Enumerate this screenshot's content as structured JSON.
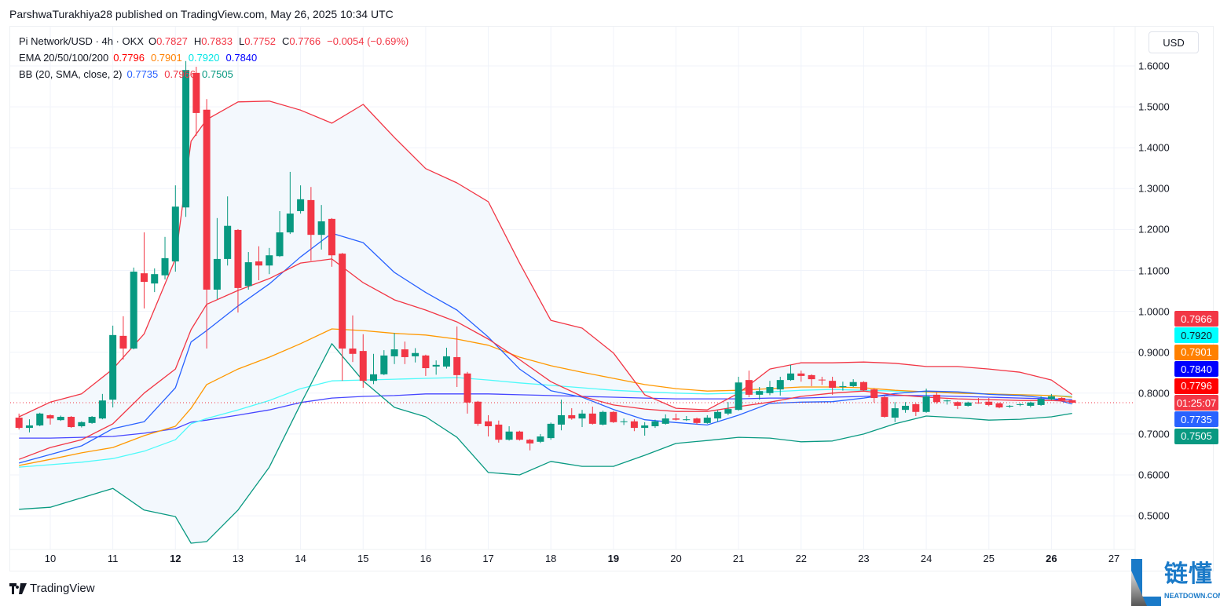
{
  "header": {
    "publish_line": "ParshwaTurakhiya28 published on TradingView.com, May 26, 2025 10:34 UTC"
  },
  "legend": {
    "symbol": "Pi Network/USD · 4h · OKX",
    "o_label": "O",
    "o": "0.7827",
    "h_label": "H",
    "h": "0.7833",
    "l_label": "L",
    "l": "0.7752",
    "c_label": "C",
    "c": "0.7766",
    "change": "−0.0054 (−0.69%)",
    "ema_label": "EMA 20/50/100/200",
    "ema20": "0.7796",
    "ema50": "0.7901",
    "ema100": "0.7920",
    "ema200": "0.7840",
    "bb_label": "BB (20, SMA, close, 2)",
    "bb_basis": "0.7735",
    "bb_upper": "0.7966",
    "bb_lower": "0.7505"
  },
  "currency_button": "USD",
  "price_labels": [
    {
      "text": "0.7966",
      "value": 0.7966,
      "bg": "#f23645",
      "fg": "#ffffff",
      "slot": 0
    },
    {
      "text": "0.7920",
      "value": 0.792,
      "bg": "#00ffff",
      "fg": "#131722",
      "slot": 1
    },
    {
      "text": "0.7901",
      "value": 0.7901,
      "bg": "#ff8000",
      "fg": "#ffffff",
      "slot": 2
    },
    {
      "text": "0.7840",
      "value": 0.784,
      "bg": "#0000ff",
      "fg": "#ffffff",
      "slot": 3
    },
    {
      "text": "0.7796",
      "value": 0.7796,
      "bg": "#ff0000",
      "fg": "#ffffff",
      "slot": 4
    },
    {
      "text": "01:25:07",
      "value": 0.7766,
      "bg": "#f23645",
      "fg": "#ffffff",
      "slot": 5
    },
    {
      "text": "0.7735",
      "value": 0.7735,
      "bg": "#2962ff",
      "fg": "#ffffff",
      "slot": 6
    },
    {
      "text": "0.7505",
      "value": 0.7505,
      "bg": "#089981",
      "fg": "#ffffff",
      "slot": 7
    }
  ],
  "footer": {
    "brand": "TradingView"
  },
  "watermark": {
    "cn": "链懂",
    "en": "NEATDOWN.COM"
  },
  "colors": {
    "up": "#089981",
    "down": "#f23645",
    "ema20": "#f23645",
    "ema50": "#ff9800",
    "ema100": "#4dfafa",
    "ema200": "#4646ff",
    "bb_basis": "#2962ff",
    "bb_upper": "#f23645",
    "bb_lower": "#089981",
    "bb_fill": "#f3f8fd",
    "grid": "#f0f3fa",
    "current_price": "#f23645"
  },
  "chart_data": {
    "type": "candlestick",
    "interval": "4h",
    "xlabel": "",
    "ylabel": "",
    "ylim": [
      0.42,
      1.68
    ],
    "xlim": [
      9.4,
      27.5
    ],
    "y_ticks": [
      "1.6000",
      "1.5000",
      "1.4000",
      "1.3000",
      "1.2000",
      "1.1000",
      "1.0000",
      "0.9000",
      "0.8000",
      "0.7000",
      "0.6000",
      "0.5000"
    ],
    "x_ticks": [
      {
        "label": "10",
        "day": 10
      },
      {
        "label": "11",
        "day": 11
      },
      {
        "label": "12",
        "day": 12,
        "bold": true
      },
      {
        "label": "13",
        "day": 13
      },
      {
        "label": "14",
        "day": 14
      },
      {
        "label": "15",
        "day": 15
      },
      {
        "label": "16",
        "day": 16
      },
      {
        "label": "17",
        "day": 17
      },
      {
        "label": "18",
        "day": 18
      },
      {
        "label": "19",
        "day": 19,
        "bold": true
      },
      {
        "label": "20",
        "day": 20
      },
      {
        "label": "21",
        "day": 21
      },
      {
        "label": "22",
        "day": 22
      },
      {
        "label": "23",
        "day": 23
      },
      {
        "label": "24",
        "day": 24
      },
      {
        "label": "25",
        "day": 25
      },
      {
        "label": "26",
        "day": 26,
        "bold": true
      },
      {
        "label": "27",
        "day": 27
      }
    ],
    "grid": true,
    "current_price": 0.7766,
    "candles_columns": [
      "time",
      "open",
      "high",
      "low",
      "close"
    ],
    "candles": [
      [
        "05-09 12:00",
        0.74,
        0.75,
        0.711,
        0.715
      ],
      [
        "05-09 16:00",
        0.715,
        0.736,
        0.704,
        0.721
      ],
      [
        "05-09 20:00",
        0.721,
        0.752,
        0.719,
        0.75
      ],
      [
        "05-10 00:00",
        0.746,
        0.748,
        0.723,
        0.738
      ],
      [
        "05-10 04:00",
        0.734,
        0.745,
        0.732,
        0.742
      ],
      [
        "05-10 08:00",
        0.742,
        0.744,
        0.715,
        0.717
      ],
      [
        "05-10 12:00",
        0.719,
        0.731,
        0.716,
        0.729
      ],
      [
        "05-10 16:00",
        0.727,
        0.744,
        0.725,
        0.742
      ],
      [
        "05-10 20:00",
        0.738,
        0.798,
        0.736,
        0.782
      ],
      [
        "05-11 00:00",
        0.784,
        0.965,
        0.765,
        0.942
      ],
      [
        "05-11 04:00",
        0.94,
        0.988,
        0.882,
        0.909
      ],
      [
        "05-11 08:00",
        0.909,
        1.107,
        0.907,
        1.097
      ],
      [
        "05-11 12:00",
        1.093,
        1.193,
        1.007,
        1.072
      ],
      [
        "05-11 16:00",
        1.068,
        1.105,
        1.047,
        1.091
      ],
      [
        "05-11 20:00",
        1.088,
        1.182,
        1.078,
        1.13
      ],
      [
        "05-12 00:00",
        1.122,
        1.308,
        1.097,
        1.256
      ],
      [
        "05-12 04:00",
        1.254,
        1.612,
        1.231,
        1.59
      ],
      [
        "05-12 08:00",
        1.583,
        1.598,
        1.429,
        1.485
      ],
      [
        "05-12 12:00",
        1.493,
        1.519,
        0.909,
        1.053
      ],
      [
        "05-12 16:00",
        1.053,
        1.228,
        1.03,
        1.128
      ],
      [
        "05-12 20:00",
        1.128,
        1.281,
        1.112,
        1.209
      ],
      [
        "05-13 00:00",
        1.199,
        1.201,
        0.997,
        1.057
      ],
      [
        "05-13 04:00",
        1.062,
        1.145,
        1.053,
        1.12
      ],
      [
        "05-13 08:00",
        1.122,
        1.159,
        1.076,
        1.112
      ],
      [
        "05-13 12:00",
        1.112,
        1.155,
        1.091,
        1.137
      ],
      [
        "05-13 16:00",
        1.135,
        1.245,
        1.133,
        1.193
      ],
      [
        "05-13 20:00",
        1.193,
        1.341,
        1.189,
        1.239
      ],
      [
        "05-14 00:00",
        1.245,
        1.308,
        1.239,
        1.274
      ],
      [
        "05-14 04:00",
        1.272,
        1.304,
        1.124,
        1.187
      ],
      [
        "05-14 08:00",
        1.187,
        1.26,
        1.151,
        1.22
      ],
      [
        "05-14 12:00",
        1.226,
        1.228,
        1.109,
        1.137
      ],
      [
        "05-14 16:00",
        1.141,
        1.143,
        0.83,
        0.909
      ],
      [
        "05-14 20:00",
        0.909,
        0.99,
        0.876,
        0.896
      ],
      [
        "05-15 00:00",
        0.903,
        0.944,
        0.813,
        0.83
      ],
      [
        "05-15 04:00",
        0.83,
        0.896,
        0.822,
        0.846
      ],
      [
        "05-15 08:00",
        0.846,
        0.905,
        0.844,
        0.892
      ],
      [
        "05-15 12:00",
        0.89,
        0.947,
        0.871,
        0.907
      ],
      [
        "05-15 16:00",
        0.907,
        0.926,
        0.871,
        0.888
      ],
      [
        "05-15 20:00",
        0.89,
        0.91,
        0.875,
        0.898
      ],
      [
        "05-16 00:00",
        0.892,
        0.894,
        0.842,
        0.861
      ],
      [
        "05-16 04:00",
        0.865,
        0.88,
        0.845,
        0.869
      ],
      [
        "05-16 08:00",
        0.865,
        0.911,
        0.86,
        0.89
      ],
      [
        "05-16 12:00",
        0.888,
        0.963,
        0.815,
        0.844
      ],
      [
        "05-16 16:00",
        0.848,
        0.852,
        0.75,
        0.777
      ],
      [
        "05-16 20:00",
        0.779,
        0.781,
        0.72,
        0.725
      ],
      [
        "05-17 00:00",
        0.731,
        0.746,
        0.694,
        0.719
      ],
      [
        "05-17 04:00",
        0.723,
        0.733,
        0.679,
        0.686
      ],
      [
        "05-17 08:00",
        0.686,
        0.719,
        0.684,
        0.706
      ],
      [
        "05-17 12:00",
        0.706,
        0.708,
        0.684,
        0.686
      ],
      [
        "05-17 16:00",
        0.686,
        0.688,
        0.66,
        0.677
      ],
      [
        "05-17 20:00",
        0.681,
        0.7,
        0.678,
        0.694
      ],
      [
        "05-18 00:00",
        0.69,
        0.728,
        0.686,
        0.725
      ],
      [
        "05-18 04:00",
        0.723,
        0.784,
        0.709,
        0.746
      ],
      [
        "05-18 08:00",
        0.746,
        0.763,
        0.735,
        0.738
      ],
      [
        "05-18 12:00",
        0.738,
        0.759,
        0.717,
        0.75
      ],
      [
        "05-18 16:00",
        0.75,
        0.767,
        0.723,
        0.725
      ],
      [
        "05-18 20:00",
        0.723,
        0.757,
        0.721,
        0.754
      ],
      [
        "05-19 00:00",
        0.754,
        0.756,
        0.727,
        0.729
      ],
      [
        "05-19 04:00",
        0.729,
        0.738,
        0.722,
        0.731
      ],
      [
        "05-19 08:00",
        0.731,
        0.736,
        0.707,
        0.715
      ],
      [
        "05-19 12:00",
        0.715,
        0.729,
        0.696,
        0.721
      ],
      [
        "05-19 16:00",
        0.719,
        0.735,
        0.715,
        0.731
      ],
      [
        "05-19 20:00",
        0.725,
        0.748,
        0.723,
        0.738
      ],
      [
        "05-20 00:00",
        0.738,
        0.75,
        0.733,
        0.735
      ],
      [
        "05-20 04:00",
        0.734,
        0.744,
        0.732,
        0.736
      ],
      [
        "05-20 08:00",
        0.738,
        0.74,
        0.723,
        0.727
      ],
      [
        "05-20 12:00",
        0.727,
        0.746,
        0.725,
        0.74
      ],
      [
        "05-20 16:00",
        0.738,
        0.758,
        0.73,
        0.754
      ],
      [
        "05-20 20:00",
        0.75,
        0.778,
        0.746,
        0.761
      ],
      [
        "05-21 00:00",
        0.759,
        0.84,
        0.757,
        0.826
      ],
      [
        "05-21 04:00",
        0.832,
        0.855,
        0.79,
        0.796
      ],
      [
        "05-21 08:00",
        0.796,
        0.815,
        0.784,
        0.805
      ],
      [
        "05-21 12:00",
        0.8,
        0.83,
        0.795,
        0.815
      ],
      [
        "05-21 16:00",
        0.809,
        0.84,
        0.794,
        0.832
      ],
      [
        "05-21 20:00",
        0.832,
        0.869,
        0.83,
        0.848
      ],
      [
        "05-22 00:00",
        0.848,
        0.855,
        0.828,
        0.842
      ],
      [
        "05-22 04:00",
        0.844,
        0.846,
        0.817,
        0.834
      ],
      [
        "05-22 08:00",
        0.833,
        0.84,
        0.82,
        0.832
      ],
      [
        "05-22 12:00",
        0.83,
        0.84,
        0.796,
        0.813
      ],
      [
        "05-22 16:00",
        0.815,
        0.828,
        0.806,
        0.817
      ],
      [
        "05-22 20:00",
        0.817,
        0.834,
        0.815,
        0.827
      ],
      [
        "05-23 00:00",
        0.827,
        0.829,
        0.805,
        0.807
      ],
      [
        "05-23 04:00",
        0.809,
        0.812,
        0.777,
        0.788
      ],
      [
        "05-23 08:00",
        0.79,
        0.795,
        0.74,
        0.742
      ],
      [
        "05-23 12:00",
        0.74,
        0.778,
        0.729,
        0.763
      ],
      [
        "05-23 16:00",
        0.759,
        0.778,
        0.752,
        0.769
      ],
      [
        "05-23 20:00",
        0.773,
        0.775,
        0.744,
        0.754
      ],
      [
        "05-24 00:00",
        0.754,
        0.811,
        0.752,
        0.792
      ],
      [
        "05-24 04:00",
        0.796,
        0.802,
        0.774,
        0.778
      ],
      [
        "05-24 08:00",
        0.78,
        0.784,
        0.772,
        0.782
      ],
      [
        "05-24 12:00",
        0.778,
        0.78,
        0.761,
        0.769
      ],
      [
        "05-24 16:00",
        0.769,
        0.779,
        0.767,
        0.777
      ],
      [
        "05-24 20:00",
        0.777,
        0.788,
        0.774,
        0.775
      ],
      [
        "05-25 00:00",
        0.779,
        0.788,
        0.768,
        0.771
      ],
      [
        "05-25 04:00",
        0.775,
        0.777,
        0.763,
        0.765
      ],
      [
        "05-25 08:00",
        0.767,
        0.771,
        0.764,
        0.769
      ],
      [
        "05-25 12:00",
        0.771,
        0.775,
        0.768,
        0.773
      ],
      [
        "05-25 16:00",
        0.769,
        0.779,
        0.765,
        0.777
      ],
      [
        "05-25 20:00",
        0.771,
        0.792,
        0.769,
        0.786
      ],
      [
        "05-26 00:00",
        0.785,
        0.798,
        0.783,
        0.792
      ],
      [
        "05-26 04:00",
        0.788,
        0.79,
        0.78,
        0.782
      ],
      [
        "05-26 08:00",
        0.7827,
        0.7833,
        0.7752,
        0.7766
      ]
    ],
    "indicator_x_day": [
      9.5,
      10,
      10.5,
      11,
      11.5,
      12,
      12.25,
      12.5,
      13,
      13.5,
      14,
      14.5,
      15,
      15.5,
      16,
      16.5,
      17,
      17.5,
      18,
      18.5,
      19,
      19.5,
      20,
      20.5,
      21,
      21.5,
      22,
      22.5,
      23,
      23.5,
      24,
      24.5,
      25,
      25.5,
      26,
      26.33
    ],
    "series": [
      {
        "name": "BB upper",
        "key": "bb_upper",
        "values": [
          0.742,
          0.778,
          0.798,
          0.859,
          0.945,
          1.128,
          1.416,
          1.469,
          1.512,
          1.514,
          1.492,
          1.46,
          1.506,
          1.425,
          1.349,
          1.314,
          1.268,
          1.118,
          0.978,
          0.959,
          0.898,
          0.796,
          0.763,
          0.759,
          0.8,
          0.859,
          0.874,
          0.874,
          0.876,
          0.873,
          0.865,
          0.865,
          0.859,
          0.851,
          0.832,
          0.7966
        ]
      },
      {
        "name": "BB lower",
        "key": "bb_lower",
        "values": [
          0.516,
          0.521,
          0.544,
          0.567,
          0.514,
          0.498,
          0.433,
          0.437,
          0.514,
          0.619,
          0.773,
          0.921,
          0.83,
          0.765,
          0.742,
          0.692,
          0.606,
          0.6,
          0.633,
          0.621,
          0.621,
          0.648,
          0.677,
          0.684,
          0.692,
          0.69,
          0.681,
          0.683,
          0.7,
          0.725,
          0.744,
          0.74,
          0.734,
          0.736,
          0.742,
          0.7505
        ]
      },
      {
        "name": "BB basis",
        "key": "bb_basis",
        "values": [
          0.629,
          0.65,
          0.671,
          0.713,
          0.73,
          0.813,
          0.925,
          0.953,
          1.013,
          1.067,
          1.133,
          1.191,
          1.168,
          1.095,
          1.046,
          1.003,
          0.937,
          0.859,
          0.806,
          0.79,
          0.76,
          0.735,
          0.728,
          0.722,
          0.746,
          0.775,
          0.778,
          0.779,
          0.788,
          0.799,
          0.805,
          0.803,
          0.797,
          0.794,
          0.787,
          0.7735
        ]
      },
      {
        "name": "EMA 20",
        "key": "ema20",
        "values": [
          0.638,
          0.667,
          0.686,
          0.725,
          0.8,
          0.859,
          0.955,
          1.017,
          1.051,
          1.08,
          1.118,
          1.128,
          1.07,
          1.028,
          1.003,
          0.974,
          0.932,
          0.882,
          0.828,
          0.792,
          0.771,
          0.761,
          0.755,
          0.755,
          0.767,
          0.778,
          0.792,
          0.8,
          0.805,
          0.796,
          0.79,
          0.786,
          0.784,
          0.782,
          0.782,
          0.7796
        ]
      },
      {
        "name": "EMA 50",
        "key": "ema50",
        "values": [
          0.623,
          0.638,
          0.654,
          0.667,
          0.696,
          0.719,
          0.763,
          0.821,
          0.859,
          0.888,
          0.921,
          0.957,
          0.953,
          0.946,
          0.942,
          0.932,
          0.917,
          0.888,
          0.867,
          0.851,
          0.836,
          0.821,
          0.811,
          0.805,
          0.807,
          0.811,
          0.815,
          0.815,
          0.813,
          0.807,
          0.803,
          0.8,
          0.798,
          0.796,
          0.794,
          0.7901
        ]
      },
      {
        "name": "EMA 100",
        "key": "ema100",
        "values": [
          0.619,
          0.625,
          0.631,
          0.64,
          0.658,
          0.686,
          0.725,
          0.738,
          0.759,
          0.782,
          0.811,
          0.83,
          0.832,
          0.834,
          0.836,
          0.838,
          0.832,
          0.825,
          0.819,
          0.813,
          0.807,
          0.803,
          0.8,
          0.798,
          0.8,
          0.803,
          0.807,
          0.809,
          0.807,
          0.805,
          0.803,
          0.8,
          0.798,
          0.796,
          0.794,
          0.792
        ]
      },
      {
        "name": "EMA 200",
        "key": "ema200",
        "values": [
          0.69,
          0.69,
          0.692,
          0.694,
          0.702,
          0.713,
          0.729,
          0.734,
          0.746,
          0.759,
          0.777,
          0.788,
          0.792,
          0.794,
          0.798,
          0.798,
          0.798,
          0.796,
          0.794,
          0.792,
          0.79,
          0.788,
          0.786,
          0.786,
          0.786,
          0.788,
          0.788,
          0.79,
          0.792,
          0.794,
          0.794,
          0.792,
          0.79,
          0.788,
          0.786,
          0.784
        ]
      }
    ]
  }
}
